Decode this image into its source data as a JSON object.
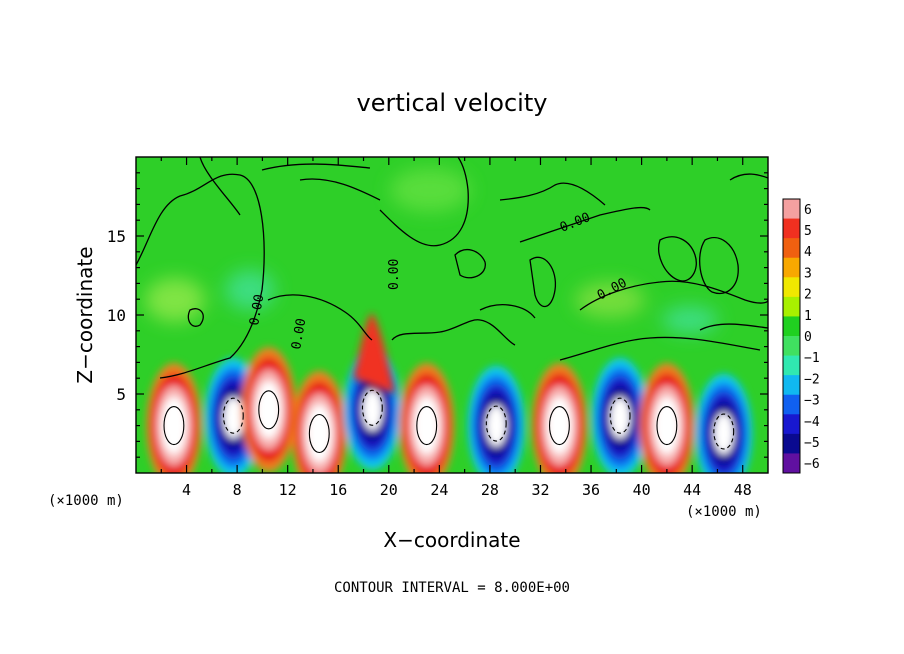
{
  "chart_data": {
    "type": "heatmap",
    "title": "vertical velocity",
    "xlabel": "X−coordinate",
    "ylabel": "Z−coordinate",
    "x_unit_left": "(×1000 m)",
    "x_unit_right": "(×1000 m)",
    "footer": "CONTOUR INTERVAL = 8.000E+00",
    "x_ticks": [
      "4",
      "8",
      "12",
      "16",
      "20",
      "24",
      "28",
      "32",
      "36",
      "40",
      "44",
      "48"
    ],
    "y_ticks": [
      "5",
      "10",
      "15"
    ],
    "xlim": [
      0,
      50
    ],
    "ylim": [
      0,
      20
    ],
    "contour_labels": [
      "0.00",
      "0.00",
      "0.00",
      "0.00",
      "0.00"
    ],
    "colorbar": {
      "tick_labels": [
        "6",
        "5",
        "4",
        "3",
        "2",
        "1",
        "0",
        "−1",
        "−2",
        "−3",
        "−4",
        "−5",
        "−6"
      ],
      "colors": [
        "#f4a0a0",
        "#f03020",
        "#f06010",
        "#f8a800",
        "#f0e800",
        "#a8f000",
        "#20d020",
        "#40e060",
        "#30e8b0",
        "#10b8f0",
        "#1060f0",
        "#1818d0",
        "#0a0a90",
        "#6010a0"
      ]
    },
    "cells": [
      {
        "x": 3,
        "z": 3,
        "w": 6.5
      },
      {
        "x": 7.7,
        "z": 3.5,
        "w": -1.5
      },
      {
        "x": 10.5,
        "z": 4,
        "w": 5.5
      },
      {
        "x": 14.5,
        "z": 2.5,
        "w": 6.5
      },
      {
        "x": 18.7,
        "z": 4,
        "w": -1.5
      },
      {
        "x": 23,
        "z": 3,
        "w": 6
      },
      {
        "x": 28.5,
        "z": 3,
        "w": -1.5
      },
      {
        "x": 33.5,
        "z": 3,
        "w": 6
      },
      {
        "x": 38.3,
        "z": 3.5,
        "w": -1.5
      },
      {
        "x": 42,
        "z": 3,
        "w": 6
      },
      {
        "x": 46.5,
        "z": 2.5,
        "w": -1.5
      }
    ]
  }
}
